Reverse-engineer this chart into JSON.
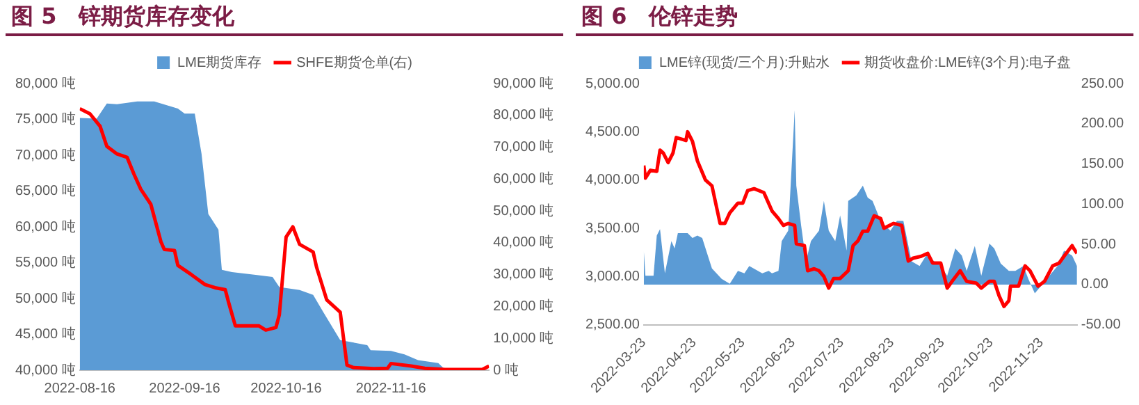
{
  "chart_data": [
    {
      "type": "area",
      "title": "图 5　锌期货库存变化",
      "legend": "top",
      "xlim": [
        "2022-08-16",
        "2022-12-15"
      ],
      "xticks": [
        "2022-08-16",
        "2022-09-16",
        "2022-10-16",
        "2022-11-16"
      ],
      "ylim": [
        40000,
        80000
      ],
      "yticks": [
        {
          "value": 40000,
          "label": "40,000 吨"
        },
        {
          "value": 45000,
          "label": "45,000 吨"
        },
        {
          "value": 50000,
          "label": "50,000 吨"
        },
        {
          "value": 55000,
          "label": "55,000 吨"
        },
        {
          "value": 60000,
          "label": "60,000 吨"
        },
        {
          "value": 65000,
          "label": "65,000 吨"
        },
        {
          "value": 70000,
          "label": "70,000 吨"
        },
        {
          "value": 75000,
          "label": "75,000 吨"
        },
        {
          "value": 80000,
          "label": "80,000 吨"
        }
      ],
      "y2lim": [
        0,
        90000
      ],
      "y2ticks": [
        {
          "value": 0,
          "label": "0 吨"
        },
        {
          "value": 10000,
          "label": "10,000 吨"
        },
        {
          "value": 20000,
          "label": "20,000 吨"
        },
        {
          "value": 30000,
          "label": "30,000 吨"
        },
        {
          "value": 40000,
          "label": "40,000 吨"
        },
        {
          "value": 50000,
          "label": "50,000 吨"
        },
        {
          "value": 60000,
          "label": "60,000 吨"
        },
        {
          "value": 70000,
          "label": "70,000 吨"
        },
        {
          "value": 80000,
          "label": "80,000 吨"
        },
        {
          "value": 90000,
          "label": "90,000 吨"
        }
      ],
      "series": [
        {
          "name": "LME期货库存",
          "color": "#5b9bd5",
          "x": [
            "2022-08-16",
            "2022-08-21",
            "2022-08-24",
            "2022-08-27",
            "2022-09-02",
            "2022-09-07",
            "2022-09-14",
            "2022-09-16",
            "2022-09-19",
            "2022-09-21",
            "2022-09-23",
            "2022-09-26",
            "2022-09-27",
            "2022-09-30",
            "2022-10-07",
            "2022-10-12",
            "2022-10-14",
            "2022-10-20",
            "2022-10-24",
            "2022-10-27",
            "2022-11-01",
            "2022-11-09",
            "2022-11-10",
            "2022-11-16",
            "2022-11-20",
            "2022-11-24",
            "2022-11-30",
            "2022-12-02",
            "2022-12-03"
          ],
          "values": [
            75200,
            75100,
            77200,
            77100,
            77500,
            77500,
            76500,
            75800,
            75800,
            70200,
            61800,
            59600,
            54000,
            53700,
            53300,
            53000,
            51600,
            51200,
            50500,
            48100,
            44200,
            43500,
            42800,
            42700,
            42200,
            41400,
            41000,
            40100,
            40000
          ]
        },
        {
          "name": "SHFE期货仓单(右)",
          "type": "line",
          "axis": "y2",
          "color": "#ff0000",
          "x": [
            "2022-08-16",
            "2022-08-19",
            "2022-08-22",
            "2022-08-24",
            "2022-08-27",
            "2022-08-30",
            "2022-09-01",
            "2022-09-03",
            "2022-09-06",
            "2022-09-09",
            "2022-09-10",
            "2022-09-13",
            "2022-09-14",
            "2022-09-18",
            "2022-09-22",
            "2022-09-25",
            "2022-09-28",
            "2022-09-29",
            "2022-10-01",
            "2022-10-08",
            "2022-10-10",
            "2022-10-13",
            "2022-10-14",
            "2022-10-16",
            "2022-10-18",
            "2022-10-20",
            "2022-10-24",
            "2022-10-25",
            "2022-10-28",
            "2022-11-01",
            "2022-11-03",
            "2022-11-05",
            "2022-11-11",
            "2022-11-15",
            "2022-11-16",
            "2022-11-22",
            "2022-11-26",
            "2022-12-02",
            "2022-12-13",
            "2022-12-15"
          ],
          "values": [
            82100,
            80500,
            76600,
            70300,
            67900,
            66800,
            61600,
            56900,
            52100,
            40300,
            37900,
            37600,
            32900,
            30000,
            26900,
            25900,
            25300,
            21300,
            13900,
            13900,
            12600,
            13400,
            17400,
            41800,
            45000,
            39500,
            37100,
            32400,
            22100,
            18200,
            1600,
            800,
            500,
            600,
            2100,
            1300,
            600,
            200,
            200,
            1300
          ]
        }
      ]
    },
    {
      "type": "line",
      "title": "图 6　伦锌走势",
      "legend": "top",
      "xlim": [
        "2022-03-23",
        "2022-12-15"
      ],
      "xticks": [
        "2022-03-23",
        "2022-04-23",
        "2022-05-23",
        "2022-06-23",
        "2022-07-23",
        "2022-08-23",
        "2022-09-23",
        "2022-10-23",
        "2022-11-23"
      ],
      "ylim": [
        2500,
        5000
      ],
      "yticks": [
        {
          "value": 2500,
          "label": "2,500.00"
        },
        {
          "value": 3000,
          "label": "3,000.00"
        },
        {
          "value": 3500,
          "label": "3,500.00"
        },
        {
          "value": 4000,
          "label": "4,000.00"
        },
        {
          "value": 4500,
          "label": "4,500.00"
        },
        {
          "value": 5000,
          "label": "5,000.00"
        }
      ],
      "y2lim": [
        -50,
        250
      ],
      "y2ticks": [
        {
          "value": -50,
          "label": "-50.00"
        },
        {
          "value": 0,
          "label": "0.00"
        },
        {
          "value": 50,
          "label": "50.00"
        },
        {
          "value": 100,
          "label": "100.00"
        },
        {
          "value": 150,
          "label": "150.00"
        },
        {
          "value": 200,
          "label": "200.00"
        },
        {
          "value": 250,
          "label": "250.00"
        }
      ],
      "series": [
        {
          "name": "LME锌(现货/三个月):升贴水",
          "type": "area",
          "axis": "y2",
          "color": "#5b9bd5",
          "x": [
            "2022-03-23",
            "2022-03-24",
            "2022-03-29",
            "2022-03-31",
            "2022-04-02",
            "2022-04-05",
            "2022-04-09",
            "2022-04-11",
            "2022-04-13",
            "2022-04-19",
            "2022-04-22",
            "2022-04-25",
            "2022-04-28",
            "2022-05-04",
            "2022-05-10",
            "2022-05-15",
            "2022-05-20",
            "2022-05-24",
            "2022-05-27",
            "2022-06-04",
            "2022-06-08",
            "2022-06-10",
            "2022-06-14",
            "2022-06-16",
            "2022-06-20",
            "2022-06-21",
            "2022-06-24",
            "2022-06-25",
            "2022-06-28",
            "2022-07-01",
            "2022-07-04",
            "2022-07-09",
            "2022-07-12",
            "2022-07-15",
            "2022-07-19",
            "2022-07-22",
            "2022-07-26",
            "2022-07-27",
            "2022-08-01",
            "2022-08-05",
            "2022-08-08",
            "2022-08-11",
            "2022-08-16",
            "2022-08-22",
            "2022-08-26",
            "2022-08-30",
            "2022-09-04",
            "2022-09-09",
            "2022-09-13",
            "2022-09-18",
            "2022-09-22",
            "2022-09-26",
            "2022-10-01",
            "2022-10-05",
            "2022-10-08",
            "2022-10-13",
            "2022-10-17",
            "2022-10-22",
            "2022-10-25",
            "2022-10-29",
            "2022-11-03",
            "2022-11-07",
            "2022-11-12",
            "2022-11-15",
            "2022-11-19",
            "2022-11-24",
            "2022-11-28",
            "2022-12-03",
            "2022-12-07",
            "2022-12-12",
            "2022-12-15"
          ],
          "values": [
            42,
            11,
            11,
            61,
            69,
            14,
            54,
            45,
            64,
            64,
            58,
            61,
            58,
            20,
            7,
            1,
            17,
            14,
            23,
            14,
            17,
            14,
            17,
            54,
            67,
            104,
            217,
            123,
            73,
            29,
            54,
            67,
            104,
            67,
            54,
            86,
            42,
            104,
            111,
            123,
            108,
            104,
            79,
            67,
            79,
            79,
            29,
            23,
            36,
            29,
            23,
            11,
            45,
            36,
            17,
            48,
            11,
            51,
            45,
            26,
            17,
            17,
            23,
            7,
            -11,
            1,
            11,
            23,
            42,
            36,
            23
          ]
        },
        {
          "name": "期货收盘价:LME锌(3个月):电子盘",
          "color": "#ff0000",
          "x": [
            "2022-03-23",
            "2022-03-24",
            "2022-03-27",
            "2022-03-31",
            "2022-04-02",
            "2022-04-04",
            "2022-04-07",
            "2022-04-10",
            "2022-04-12",
            "2022-04-18",
            "2022-04-19",
            "2022-04-22",
            "2022-04-25",
            "2022-04-30",
            "2022-05-04",
            "2022-05-09",
            "2022-05-12",
            "2022-05-15",
            "2022-05-20",
            "2022-05-23",
            "2022-05-26",
            "2022-05-30",
            "2022-06-05",
            "2022-06-10",
            "2022-06-14",
            "2022-06-17",
            "2022-06-20",
            "2022-06-24",
            "2022-06-25",
            "2022-06-30",
            "2022-07-02",
            "2022-07-06",
            "2022-07-09",
            "2022-07-12",
            "2022-07-15",
            "2022-07-18",
            "2022-07-22",
            "2022-07-27",
            "2022-07-30",
            "2022-08-02",
            "2022-08-05",
            "2022-08-08",
            "2022-08-12",
            "2022-08-16",
            "2022-08-18",
            "2022-08-24",
            "2022-08-29",
            "2022-09-02",
            "2022-09-05",
            "2022-09-10",
            "2022-09-14",
            "2022-09-17",
            "2022-09-22",
            "2022-09-26",
            "2022-09-29",
            "2022-10-04",
            "2022-10-08",
            "2022-10-14",
            "2022-10-17",
            "2022-10-22",
            "2022-10-25",
            "2022-10-28",
            "2022-10-31",
            "2022-11-03",
            "2022-11-04",
            "2022-11-09",
            "2022-11-13",
            "2022-11-16",
            "2022-11-21",
            "2022-11-25",
            "2022-11-30",
            "2022-12-04",
            "2022-12-07",
            "2022-12-12",
            "2022-12-13",
            "2022-12-15"
          ],
          "values": [
            4150,
            4020,
            4100,
            4090,
            4310,
            4280,
            4180,
            4280,
            4440,
            4410,
            4500,
            4400,
            4200,
            4000,
            3940,
            3550,
            3550,
            3660,
            3760,
            3760,
            3890,
            3910,
            3870,
            3680,
            3600,
            3530,
            3550,
            3530,
            3340,
            3320,
            3060,
            3080,
            3060,
            3000,
            2880,
            2980,
            2980,
            3060,
            3320,
            3370,
            3470,
            3470,
            3630,
            3600,
            3500,
            3550,
            3530,
            3160,
            3190,
            3210,
            3240,
            3140,
            3140,
            2880,
            2950,
            3060,
            2950,
            2930,
            2880,
            2950,
            2950,
            2800,
            2690,
            2750,
            2900,
            2900,
            3110,
            3060,
            2900,
            2950,
            3110,
            3140,
            3210,
            3320,
            3290,
            3240
          ]
        }
      ]
    }
  ]
}
